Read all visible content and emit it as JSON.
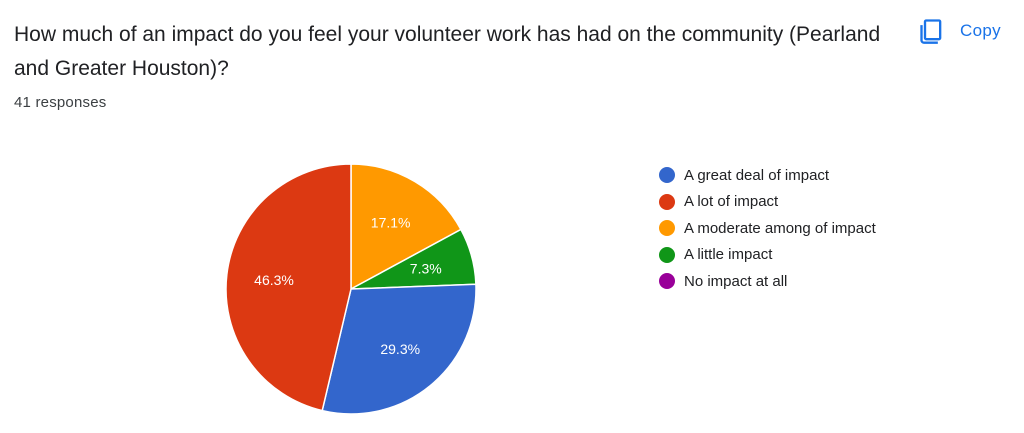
{
  "question": {
    "title": "How much of an impact do you feel your volunteer work has had on the community (Pearland and Greater Houston)?",
    "responses": "41 responses"
  },
  "toolbar": {
    "copy_label": "Copy",
    "copy_icon": "copy-icon",
    "accent": "#1a73e8"
  },
  "chart_data": {
    "type": "pie",
    "title": "How much of an impact do you feel your volunteer work has had on the community (Pearland and Greater Houston)?",
    "legend_position": "right",
    "start_angle_deg": 90,
    "direction": "clockwise",
    "slices": [
      {
        "label": "A moderate among of impact",
        "value": 17.1,
        "data_label": "17.1%",
        "color": "#ff9900"
      },
      {
        "label": "A little impact",
        "value": 7.3,
        "data_label": "7.3%",
        "color": "#109618"
      },
      {
        "label": "A great deal of impact",
        "value": 29.3,
        "data_label": "29.3%",
        "color": "#3366cc"
      },
      {
        "label": "A lot of impact",
        "value": 46.3,
        "data_label": "46.3%",
        "color": "#dc3912"
      },
      {
        "label": "No impact at all",
        "value": 0,
        "data_label": "",
        "color": "#990099"
      }
    ],
    "legend": [
      {
        "label": "A great deal of impact",
        "color": "#3366cc"
      },
      {
        "label": "A lot of impact",
        "color": "#dc3912"
      },
      {
        "label": "A moderate among of impact",
        "color": "#ff9900"
      },
      {
        "label": "A little impact",
        "color": "#109618"
      },
      {
        "label": "No impact at all",
        "color": "#990099"
      }
    ]
  }
}
